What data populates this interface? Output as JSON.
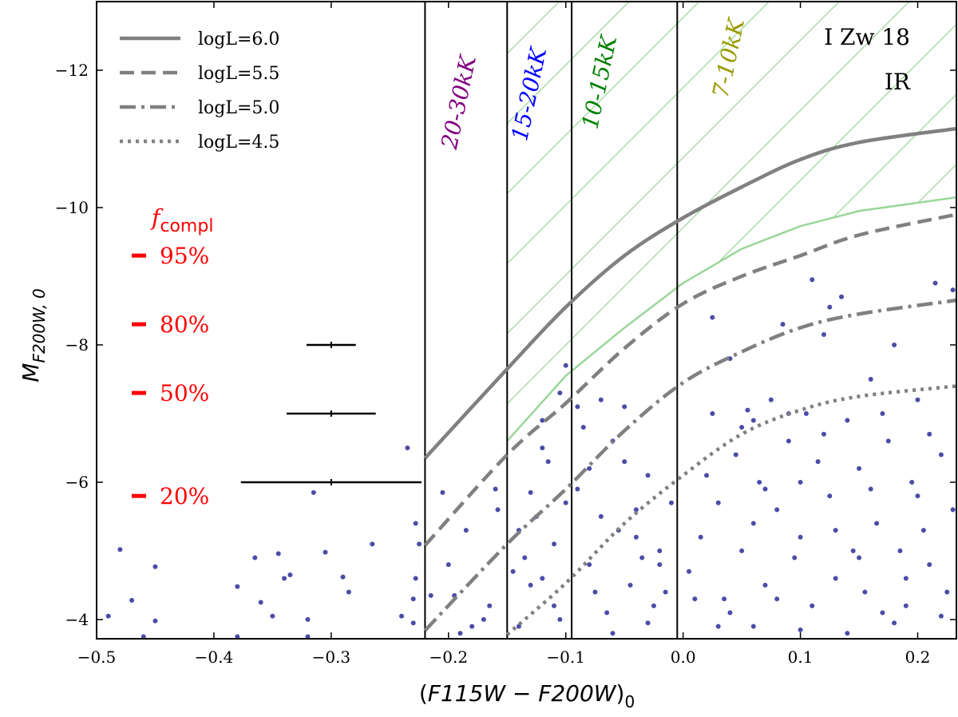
{
  "chart_data": {
    "type": "scatter",
    "xlabel": {
      "open": "(",
      "main": "F115W − F200W",
      "close": ")",
      "sub": "0"
    },
    "ylabel": {
      "main": "M",
      "sub": "F200W, 0"
    },
    "xlim": [
      -0.5,
      0.233
    ],
    "ylim": [
      -3.72,
      -13.0
    ],
    "y_inverted": true,
    "x_ticks": [
      -0.5,
      -0.4,
      -0.3,
      -0.2,
      -0.1,
      0.0,
      0.1,
      0.2
    ],
    "x_tick_labels": [
      "−0.5",
      "−0.4",
      "−0.3",
      "−0.2",
      "−0.1",
      "0.0",
      "0.1",
      "0.2"
    ],
    "y_ticks": [
      -12,
      -10,
      -8,
      -6,
      -4
    ],
    "y_tick_labels": [
      "−12",
      "−10",
      "−8",
      "−6",
      "−4"
    ],
    "grid": false,
    "object_label": [
      "I Zw 18",
      "IR"
    ],
    "point_color": "#2b2b99",
    "stars": [
      [
        -0.48,
        -5.02
      ],
      [
        -0.47,
        -4.28
      ],
      [
        -0.45,
        -4.77
      ],
      [
        -0.45,
        -3.98
      ],
      [
        -0.46,
        -3.75
      ],
      [
        -0.49,
        -4.05
      ],
      [
        -0.38,
        -4.48
      ],
      [
        -0.365,
        -4.9
      ],
      [
        -0.36,
        -4.25
      ],
      [
        -0.345,
        -4.96
      ],
      [
        -0.34,
        -4.6
      ],
      [
        -0.35,
        -4.05
      ],
      [
        -0.335,
        -4.65
      ],
      [
        -0.32,
        -4.0
      ],
      [
        -0.315,
        -5.85
      ],
      [
        -0.305,
        -4.98
      ],
      [
        -0.29,
        -4.62
      ],
      [
        -0.285,
        -4.4
      ],
      [
        -0.265,
        -5.1
      ],
      [
        -0.24,
        -4.05
      ],
      [
        -0.23,
        -3.95
      ],
      [
        -0.235,
        -6.5
      ],
      [
        -0.225,
        -5.1
      ],
      [
        -0.228,
        -5.4
      ],
      [
        -0.23,
        -4.3
      ],
      [
        -0.228,
        -4.6
      ],
      [
        -0.32,
        -3.75
      ],
      [
        -0.38,
        -3.75
      ],
      [
        -0.205,
        -5.85
      ],
      [
        -0.195,
        -4.35
      ],
      [
        -0.2,
        -4.8
      ],
      [
        -0.185,
        -5.3
      ],
      [
        -0.18,
        -3.9
      ],
      [
        -0.165,
        -4.2
      ],
      [
        -0.16,
        -5.9
      ],
      [
        -0.158,
        -5.6
      ],
      [
        -0.17,
        -4.0
      ],
      [
        -0.215,
        -4.35
      ],
      [
        -0.19,
        -3.8
      ],
      [
        -0.14,
        -5.3
      ],
      [
        -0.13,
        -5.85
      ],
      [
        -0.125,
        -5.5
      ],
      [
        -0.12,
        -4.6
      ],
      [
        -0.11,
        -4.2
      ],
      [
        -0.115,
        -6.3
      ],
      [
        -0.12,
        -6.9
      ],
      [
        -0.105,
        -7.3
      ],
      [
        -0.1,
        -5.7
      ],
      [
        -0.135,
        -4.9
      ],
      [
        -0.14,
        -3.9
      ],
      [
        -0.11,
        -5.1
      ],
      [
        -0.1,
        -7.7
      ],
      [
        -0.13,
        -4.5
      ],
      [
        -0.145,
        -4.7
      ],
      [
        -0.12,
        -6.5
      ],
      [
        -0.105,
        -4.0
      ],
      [
        -0.09,
        -7.1
      ],
      [
        -0.085,
        -6.8
      ],
      [
        -0.08,
        -6.2
      ],
      [
        -0.07,
        -5.5
      ],
      [
        -0.06,
        -6.6
      ],
      [
        -0.05,
        -7.1
      ],
      [
        -0.045,
        -4.5
      ],
      [
        -0.04,
        -5.6
      ],
      [
        -0.035,
        -4.9
      ],
      [
        -0.03,
        -6.1
      ],
      [
        -0.025,
        -4.2
      ],
      [
        -0.02,
        -5.0
      ],
      [
        -0.015,
        -4.4
      ],
      [
        -0.01,
        -5.7
      ],
      [
        -0.055,
        -5.3
      ],
      [
        -0.065,
        -4.1
      ],
      [
        -0.075,
        -4.4
      ],
      [
        -0.09,
        -5.9
      ],
      [
        -0.08,
        -4.8
      ],
      [
        -0.06,
        -3.8
      ],
      [
        -0.03,
        -3.95
      ],
      [
        -0.02,
        -4.8
      ],
      [
        -0.05,
        -6.3
      ],
      [
        -0.07,
        -7.2
      ],
      [
        -0.04,
        -5.2
      ],
      [
        0.005,
        -4.7
      ],
      [
        0.015,
        -5.2
      ],
      [
        0.02,
        -6.1
      ],
      [
        0.025,
        -8.4
      ],
      [
        0.03,
        -5.7
      ],
      [
        0.035,
        -4.3
      ],
      [
        0.04,
        -7.8
      ],
      [
        0.045,
        -6.4
      ],
      [
        0.05,
        -5.0
      ],
      [
        0.055,
        -7.05
      ],
      [
        0.06,
        -5.4
      ],
      [
        0.065,
        -6.0
      ],
      [
        0.07,
        -4.5
      ],
      [
        0.075,
        -7.2
      ],
      [
        0.08,
        -5.6
      ],
      [
        0.085,
        -8.3
      ],
      [
        0.09,
        -6.6
      ],
      [
        0.095,
        -4.9
      ],
      [
        0.1,
        -5.2
      ],
      [
        0.105,
        -7.0
      ],
      [
        0.11,
        -4.2
      ],
      [
        0.115,
        -6.3
      ],
      [
        0.12,
        -8.15
      ],
      [
        0.125,
        -5.8
      ],
      [
        0.13,
        -4.6
      ],
      [
        0.135,
        -8.7
      ],
      [
        0.14,
        -6.9
      ],
      [
        0.145,
        -5.0
      ],
      [
        0.15,
        -6.2
      ],
      [
        0.155,
        -4.4
      ],
      [
        0.16,
        -7.5
      ],
      [
        0.165,
        -5.4
      ],
      [
        0.17,
        -4.1
      ],
      [
        0.175,
        -6.6
      ],
      [
        0.18,
        -8.0
      ],
      [
        0.185,
        -5.0
      ],
      [
        0.19,
        -4.6
      ],
      [
        0.195,
        -6.0
      ],
      [
        0.2,
        -7.2
      ],
      [
        0.205,
        -5.3
      ],
      [
        0.21,
        -4.8
      ],
      [
        0.215,
        -8.9
      ],
      [
        0.22,
        -6.4
      ],
      [
        0.225,
        -4.4
      ],
      [
        0.23,
        -5.6
      ],
      [
        0.11,
        -8.95
      ],
      [
        0.125,
        -8.55
      ],
      [
        0.09,
        -7.0
      ],
      [
        0.06,
        -3.9
      ],
      [
        0.1,
        -3.85
      ],
      [
        0.14,
        -3.8
      ],
      [
        0.18,
        -3.95
      ],
      [
        0.22,
        -4.05
      ],
      [
        0.03,
        -3.9
      ],
      [
        0.07,
        -5.9
      ],
      [
        0.13,
        -5.3
      ],
      [
        0.16,
        -5.9
      ],
      [
        0.2,
        -5.8
      ],
      [
        0.05,
        -6.8
      ],
      [
        0.12,
        -6.7
      ],
      [
        0.17,
        -7.0
      ],
      [
        0.23,
        -8.8
      ],
      [
        0.01,
        -4.3
      ],
      [
        0.04,
        -4.1
      ],
      [
        0.08,
        -4.3
      ],
      [
        0.15,
        -4.9
      ],
      [
        0.19,
        -4.2
      ],
      [
        0.21,
        -6.7
      ],
      [
        0.1,
        -6.0
      ],
      [
        0.025,
        -7.0
      ],
      [
        0.06,
        -6.9
      ]
    ],
    "series": [
      {
        "name": "logL=6.0",
        "style": "solid",
        "color": "#808080",
        "x": [
          -0.22,
          -0.15,
          -0.1,
          -0.05,
          0.0,
          0.05,
          0.1,
          0.15,
          0.233
        ],
        "y": [
          -6.35,
          -7.65,
          -8.55,
          -9.3,
          -9.85,
          -10.3,
          -10.7,
          -10.95,
          -11.15
        ]
      },
      {
        "name": "logL=5.5",
        "style": "dashed",
        "color": "#808080",
        "x": [
          -0.22,
          -0.15,
          -0.1,
          -0.05,
          0.0,
          0.05,
          0.1,
          0.15,
          0.233
        ],
        "y": [
          -5.08,
          -6.4,
          -7.15,
          -7.95,
          -8.6,
          -9.0,
          -9.3,
          -9.6,
          -9.9
        ]
      },
      {
        "name": "logL=5.0",
        "style": "dashdot",
        "color": "#808080",
        "x": [
          -0.22,
          -0.15,
          -0.1,
          -0.05,
          0.0,
          0.05,
          0.1,
          0.15,
          0.233
        ],
        "y": [
          -3.84,
          -5.1,
          -5.9,
          -6.75,
          -7.45,
          -7.9,
          -8.25,
          -8.45,
          -8.65
        ]
      },
      {
        "name": "logL=4.5",
        "style": "dotted",
        "color": "#808080",
        "x": [
          -0.15,
          -0.1,
          -0.05,
          0.0,
          0.05,
          0.1,
          0.15,
          0.233
        ],
        "y": [
          -3.78,
          -4.53,
          -5.4,
          -6.1,
          -6.7,
          -7.05,
          -7.25,
          -7.4
        ]
      }
    ],
    "hatched_region": {
      "color": "#99d699",
      "x_min": -0.15,
      "lower_boundary": {
        "x": [
          -0.15,
          -0.1,
          -0.05,
          0.0,
          0.05,
          0.1,
          0.15,
          0.233
        ],
        "y": [
          -6.6,
          -7.55,
          -8.25,
          -8.9,
          -9.4,
          -9.73,
          -9.95,
          -10.15
        ]
      }
    },
    "vertical_lines": [
      -0.22,
      -0.15,
      -0.095,
      -0.005
    ],
    "temperature_bins": [
      {
        "label": "20-30kK",
        "x": -0.185,
        "color": "#800080"
      },
      {
        "label": "15-20kK",
        "x": -0.125,
        "color": "#0000ff"
      },
      {
        "label": "10-15kK",
        "x": -0.065,
        "color": "#008000"
      },
      {
        "label": "7-10kK",
        "x": 0.045,
        "color": "#999900"
      }
    ],
    "error_bars": [
      {
        "x": -0.3,
        "y": -8,
        "xerr": 0.021
      },
      {
        "x": -0.3,
        "y": -7,
        "xerr": 0.038
      },
      {
        "x": -0.3,
        "y": -6,
        "xerr": 0.077
      }
    ],
    "completeness": {
      "title_main": "f",
      "title_sub": "compl",
      "color": "#ff0000",
      "levels": [
        {
          "label": "95%",
          "y": -9.3
        },
        {
          "label": "80%",
          "y": -8.3
        },
        {
          "label": "50%",
          "y": -7.3
        },
        {
          "label": "20%",
          "y": -5.8
        }
      ]
    },
    "legend_position": "top-left"
  }
}
